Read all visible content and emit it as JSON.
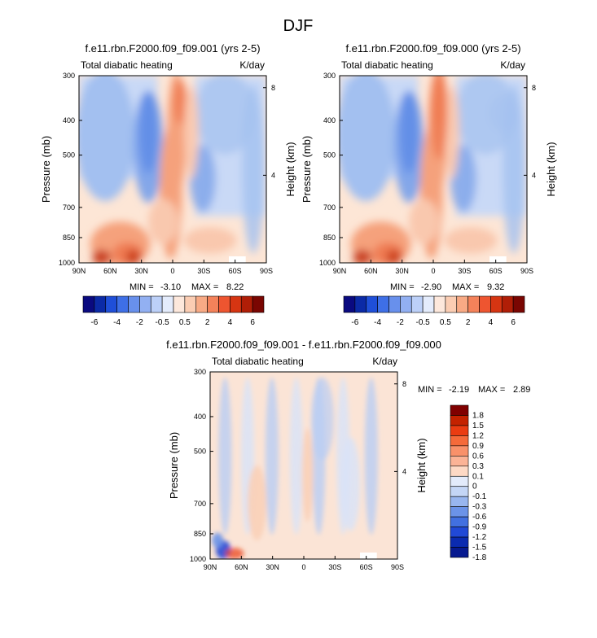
{
  "figure_title": "DJF",
  "chart_data": [
    {
      "type": "heatmap",
      "title": "f.e11.rbn.F2000.f09_f09.001 (yrs 2-5)",
      "left_string": "Total diabatic heating",
      "right_string": "K/day",
      "xlabel": "",
      "ylabel": "Pressure (mb)",
      "ylabel_right": "Height (km)",
      "x_ticks": [
        "90N",
        "60N",
        "30N",
        "0",
        "30S",
        "60S",
        "90S"
      ],
      "y_ticks": [
        "300",
        "400",
        "500",
        "700",
        "850",
        "1000"
      ],
      "y_right_ticks": [
        "8",
        "4"
      ],
      "min_label": "MIN =",
      "min_value": "-3.10",
      "max_label": "MAX =",
      "max_value": "8.22",
      "colorbar_levels": [
        "-6",
        "-4",
        "-2",
        "-0.5",
        "0.5",
        "2",
        "4",
        "6"
      ]
    },
    {
      "type": "heatmap",
      "title": "f.e11.rbn.F2000.f09_f09.000 (yrs 2-5)",
      "left_string": "Total diabatic heating",
      "right_string": "K/day",
      "xlabel": "",
      "ylabel": "Pressure (mb)",
      "ylabel_right": "Height (km)",
      "x_ticks": [
        "90N",
        "60N",
        "30N",
        "0",
        "30S",
        "60S",
        "90S"
      ],
      "y_ticks": [
        "300",
        "400",
        "500",
        "700",
        "850",
        "1000"
      ],
      "y_right_ticks": [
        "8",
        "4"
      ],
      "min_label": "MIN =",
      "min_value": "-2.90",
      "max_label": "MAX =",
      "max_value": "9.32",
      "colorbar_levels": [
        "-6",
        "-4",
        "-2",
        "-0.5",
        "0.5",
        "2",
        "4",
        "6"
      ]
    },
    {
      "type": "heatmap",
      "title": "f.e11.rbn.F2000.f09_f09.001 - f.e11.rbn.F2000.f09_f09.000",
      "left_string": "Total diabatic heating",
      "right_string": "K/day",
      "xlabel": "",
      "ylabel": "Pressure (mb)",
      "ylabel_right": "Height (km)",
      "x_ticks": [
        "90N",
        "60N",
        "30N",
        "0",
        "30S",
        "60S",
        "90S"
      ],
      "y_ticks": [
        "300",
        "400",
        "500",
        "700",
        "850",
        "1000"
      ],
      "y_right_ticks": [
        "8",
        "4"
      ],
      "min_label": "MIN =",
      "min_value": "-2.19",
      "max_label": "MAX =",
      "max_value": "2.89",
      "colorbar_levels": [
        "1.8",
        "1.5",
        "1.2",
        "0.9",
        "0.6",
        "0.3",
        "0.1",
        "0",
        "-0.1",
        "-0.3",
        "-0.6",
        "-0.9",
        "-1.2",
        "-1.5",
        "-1.8"
      ]
    }
  ],
  "colors": {
    "cb_main": [
      "#0a0a80",
      "#0b2aa6",
      "#1f4fd8",
      "#3e6fe6",
      "#6890ec",
      "#92b0f2",
      "#bcd0f8",
      "#e4ecfc",
      "#fde8dc",
      "#fbcdb3",
      "#f8aa85",
      "#f4825a",
      "#ee5530",
      "#d63512",
      "#b01e07",
      "#7a0602"
    ],
    "cb_diff_pos": [
      "#800000",
      "#c42200",
      "#ea3c12",
      "#f56a3a",
      "#f9916a",
      "#fbb396",
      "#fdd9c5"
    ],
    "cb_diff_neg": [
      "#e3ebfb",
      "#c4d6f6",
      "#98b6ef",
      "#6b93e8",
      "#4270e0",
      "#2149d6",
      "#0b2bb0",
      "#071a90"
    ],
    "field_base": "#fde6d6",
    "field_blue_light": "#c9d9f6",
    "field_blue_mid": "#a3c0f0",
    "field_blue_strong": "#7da3ea",
    "field_red_light": "#f9c8ae",
    "field_red_mid": "#f5a17c",
    "field_red_strong": "#ef7c52",
    "field_red_dark": "#c43313",
    "diff_base": "#fbe4d6",
    "diff_blue": "#d8e4f9",
    "diff_blue_mid": "#b9cdf4"
  }
}
